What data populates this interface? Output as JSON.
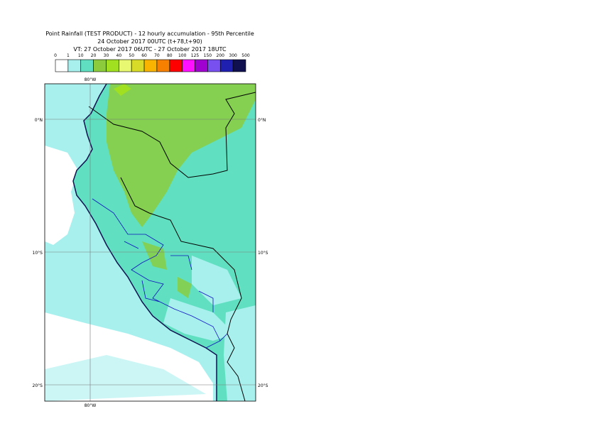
{
  "header": {
    "lines": [
      "Point Rainfall (TEST PRODUCT) - 12 hourly accumulation - 95th Percentile",
      "24 October 2017 00UTC (t+78,t+90)",
      "VT: 27 October 2017 06UTC - 27 October 2017 18UTC"
    ]
  },
  "legend": {
    "thresholds": [
      0,
      1,
      10,
      20,
      30,
      40,
      50,
      60,
      70,
      80,
      100,
      125,
      150,
      200,
      300,
      500
    ],
    "colors": [
      "#ffffff",
      "#a8f0ee",
      "#60e0c0",
      "#8ccc3c",
      "#a0e020",
      "#e8f870",
      "#d8dc28",
      "#f8b400",
      "#f88000",
      "#ff0000",
      "#ff10ff",
      "#a000d0",
      "#7850f0",
      "#2020b0",
      "#101050"
    ]
  },
  "map": {
    "lon_labels": [
      "80°W"
    ],
    "lat_labels": [
      "0°N",
      "10°S",
      "20°S"
    ]
  }
}
